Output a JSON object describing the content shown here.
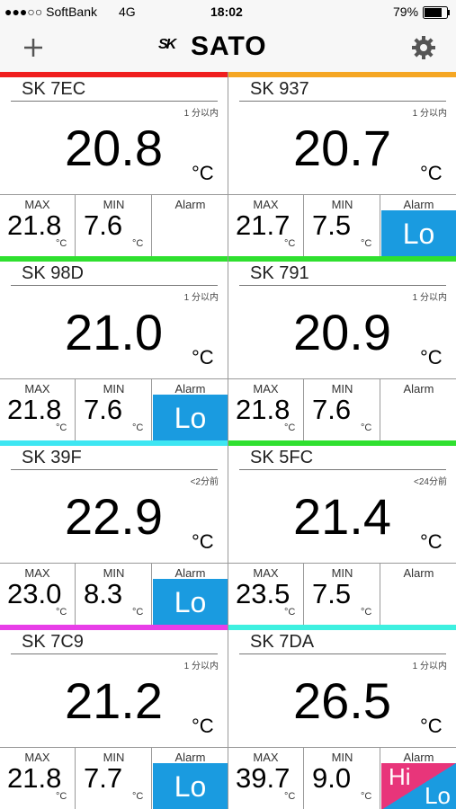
{
  "status_bar": {
    "carrier": "●●●○○ SoftBank",
    "network": "4G",
    "time": "18:02",
    "battery": "79%"
  },
  "nav": {
    "logo_mark": "SK",
    "logo": "SATO"
  },
  "labels": {
    "max": "MAX",
    "min": "MIN",
    "alarm": "Alarm",
    "unit": "°C"
  },
  "sensors": [
    {
      "name": "SK 7EC",
      "color": "#f01e1e",
      "updated": "1 分以内",
      "temperature": "20.8",
      "max": "21.8",
      "min": "7.6"
    },
    {
      "name": "SK 937",
      "color": "#f5a623",
      "updated": "1 分以内",
      "temperature": "20.7",
      "max": "21.7",
      "min": "7.5",
      "alarm": {
        "lo": "Lo"
      }
    },
    {
      "name": "SK 98D",
      "color": "#2fe02f",
      "updated": "1 分以内",
      "temperature": "21.0",
      "max": "21.8",
      "min": "7.6",
      "alarm": {
        "lo": "Lo"
      }
    },
    {
      "name": "SK 791",
      "color": "#2fe02f",
      "updated": "1 分以内",
      "temperature": "20.9",
      "max": "21.8",
      "min": "7.6"
    },
    {
      "name": "SK 39F",
      "color": "#3ee6f2",
      "updated": "<2分前",
      "temperature": "22.9",
      "max": "23.0",
      "min": "8.3",
      "alarm": {
        "lo": "Lo"
      }
    },
    {
      "name": "SK 5FC",
      "color": "#2fe02f",
      "updated": "<24分前",
      "temperature": "21.4",
      "max": "23.5",
      "min": "7.5"
    },
    {
      "name": "SK 7C9",
      "color": "#e83ee8",
      "updated": "1 分以内",
      "temperature": "21.2",
      "max": "21.8",
      "min": "7.7",
      "alarm": {
        "lo": "Lo"
      }
    },
    {
      "name": "SK 7DA",
      "color": "#3ef0e0",
      "updated": "1 分以内",
      "temperature": "26.5",
      "max": "39.7",
      "min": "9.0",
      "alarm": {
        "hi": "Hi",
        "lo": "Lo"
      }
    }
  ]
}
